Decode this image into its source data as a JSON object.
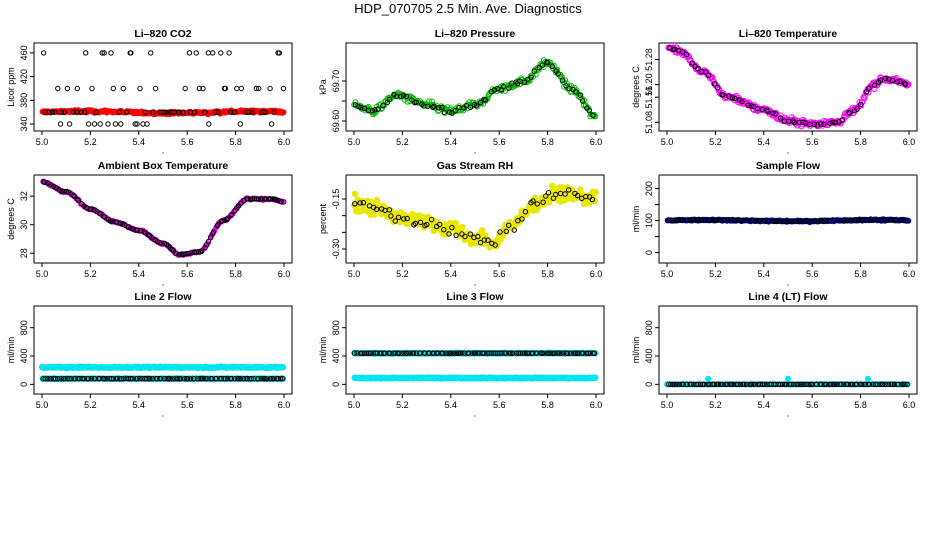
{
  "page": {
    "title": "HDP_070705  2.5 Min. Ave. Diagnostics"
  },
  "chart_data": [
    {
      "type": "scatter",
      "title": "Li–820 CO2",
      "xlabel": "",
      "ylabel": "Licor ppm",
      "xlim": [
        5.0,
        6.0
      ],
      "ylim": [
        335,
        470
      ],
      "xticks": [
        5.0,
        5.2,
        5.4,
        5.6,
        5.8,
        6.0
      ],
      "xtick_labels": [
        "5.0",
        "5.2",
        "5.4",
        "5.6",
        "5.8",
        "6.0"
      ],
      "yticks": [
        340,
        380,
        420,
        460
      ],
      "ytick_labels": [
        "340",
        "380",
        "420",
        "460"
      ],
      "series": [
        {
          "name": "raw",
          "color": "#ff0000",
          "mode": "band",
          "baseline": 360,
          "spread": 3,
          "noise": 1.5,
          "amp": 1.5,
          "n": 240,
          "size": 2.6,
          "marker": "filled"
        },
        {
          "name": "average",
          "color": "#000000",
          "mode": "discrete",
          "levels": [
            340,
            360,
            360,
            360,
            400,
            460
          ],
          "n": 90,
          "size": 2.2,
          "marker": "open"
        }
      ]
    },
    {
      "type": "scatter",
      "title": "Li–820 Pressure",
      "xlabel": "",
      "ylabel": "kPa",
      "xlim": [
        5.0,
        6.0
      ],
      "ylim": [
        69.585,
        69.785
      ],
      "xticks": [
        5.0,
        5.2,
        5.4,
        5.6,
        5.8,
        6.0
      ],
      "xtick_labels": [
        "5.0",
        "5.2",
        "5.4",
        "5.6",
        "5.8",
        "6.0"
      ],
      "yticks": [
        69.6,
        69.65,
        69.7
      ],
      "ytick_labels": [
        "69.60",
        "",
        "69.70"
      ],
      "series": [
        {
          "name": "raw",
          "color": "#00bb00",
          "mode": "curve",
          "curve": [
            [
              5.0,
              69.64
            ],
            [
              5.08,
              69.625
            ],
            [
              5.18,
              69.665
            ],
            [
              5.3,
              69.64
            ],
            [
              5.4,
              69.625
            ],
            [
              5.5,
              69.64
            ],
            [
              5.6,
              69.68
            ],
            [
              5.7,
              69.7
            ],
            [
              5.8,
              69.745
            ],
            [
              5.9,
              69.68
            ],
            [
              6.0,
              69.61
            ]
          ],
          "spread": 0.012,
          "noise": 0.006,
          "n": 260,
          "size": 2.4,
          "marker": "open"
        },
        {
          "name": "average",
          "color": "#000000",
          "mode": "curve",
          "curve": [
            [
              5.0,
              69.64
            ],
            [
              5.08,
              69.625
            ],
            [
              5.18,
              69.665
            ],
            [
              5.3,
              69.64
            ],
            [
              5.4,
              69.625
            ],
            [
              5.5,
              69.64
            ],
            [
              5.6,
              69.68
            ],
            [
              5.7,
              69.7
            ],
            [
              5.8,
              69.745
            ],
            [
              5.9,
              69.68
            ],
            [
              6.0,
              69.61
            ]
          ],
          "spread": 0.006,
          "noise": 0.004,
          "n": 70,
          "size": 2.2,
          "marker": "open"
        }
      ]
    },
    {
      "type": "scatter",
      "title": "Li–820 Temperature",
      "xlabel": "",
      "ylabel": "degrees C",
      "xlim": [
        5.0,
        6.0
      ],
      "ylim": [
        51.065,
        51.32
      ],
      "xticks": [
        5.0,
        5.2,
        5.4,
        5.6,
        5.8,
        6.0
      ],
      "xtick_labels": [
        "5.0",
        "5.2",
        "5.4",
        "5.6",
        "5.8",
        "6.0"
      ],
      "yticks": [
        51.08,
        51.16,
        51.2,
        51.28
      ],
      "ytick_labels": [
        "51.08",
        "51.16",
        "51.20",
        "51.28"
      ],
      "series": [
        {
          "name": "raw",
          "color": "#ff00ff",
          "mode": "curve",
          "curve": [
            [
              5.0,
              51.32
            ],
            [
              5.05,
              51.31
            ],
            [
              5.15,
              51.24
            ],
            [
              5.25,
              51.16
            ],
            [
              5.4,
              51.12
            ],
            [
              5.5,
              51.085
            ],
            [
              5.6,
              51.075
            ],
            [
              5.7,
              51.08
            ],
            [
              5.78,
              51.12
            ],
            [
              5.85,
              51.2
            ],
            [
              5.9,
              51.22
            ],
            [
              5.95,
              51.21
            ],
            [
              6.0,
              51.2
            ]
          ],
          "spread": 0.012,
          "noise": 0.008,
          "n": 300,
          "size": 2.6,
          "marker": "open"
        },
        {
          "name": "average",
          "color": "#000000",
          "mode": "curve",
          "curve": [
            [
              5.0,
              51.32
            ],
            [
              5.05,
              51.31
            ],
            [
              5.15,
              51.24
            ],
            [
              5.25,
              51.16
            ],
            [
              5.4,
              51.12
            ],
            [
              5.5,
              51.085
            ],
            [
              5.6,
              51.075
            ],
            [
              5.7,
              51.08
            ],
            [
              5.78,
              51.12
            ],
            [
              5.85,
              51.2
            ],
            [
              5.9,
              51.22
            ],
            [
              5.95,
              51.21
            ],
            [
              6.0,
              51.2
            ]
          ],
          "spread": 0.004,
          "noise": 0.003,
          "n": 65,
          "size": 2.2,
          "marker": "open"
        }
      ]
    },
    {
      "type": "scatter",
      "title": "Ambient Box Temperature",
      "xlabel": "",
      "ylabel": "degrees C",
      "xlim": [
        5.0,
        6.0
      ],
      "ylim": [
        27.6,
        33.2
      ],
      "xticks": [
        5.0,
        5.2,
        5.4,
        5.6,
        5.8,
        6.0
      ],
      "xtick_labels": [
        "5.0",
        "5.2",
        "5.4",
        "5.6",
        "5.8",
        "6.0"
      ],
      "yticks": [
        28,
        30,
        32
      ],
      "ytick_labels": [
        "28",
        "30",
        "32"
      ],
      "series": [
        {
          "name": "raw",
          "color": "#ff00ff",
          "mode": "curve",
          "curve": [
            [
              5.0,
              33.0
            ],
            [
              5.1,
              32.3
            ],
            [
              5.2,
              31.1
            ],
            [
              5.3,
              30.2
            ],
            [
              5.4,
              29.6
            ],
            [
              5.5,
              28.7
            ],
            [
              5.57,
              27.9
            ],
            [
              5.65,
              28.1
            ],
            [
              5.75,
              30.3
            ],
            [
              5.85,
              31.8
            ],
            [
              5.95,
              31.8
            ],
            [
              6.0,
              31.6
            ]
          ],
          "spread": 0.08,
          "noise": 0.04,
          "n": 120,
          "size": 2.6,
          "marker": "filled"
        },
        {
          "name": "average",
          "color": "#000000",
          "mode": "curve",
          "curve": [
            [
              5.0,
              33.0
            ],
            [
              5.1,
              32.3
            ],
            [
              5.2,
              31.1
            ],
            [
              5.3,
              30.2
            ],
            [
              5.4,
              29.6
            ],
            [
              5.5,
              28.7
            ],
            [
              5.57,
              27.9
            ],
            [
              5.65,
              28.1
            ],
            [
              5.75,
              30.3
            ],
            [
              5.85,
              31.8
            ],
            [
              5.95,
              31.8
            ],
            [
              6.0,
              31.6
            ]
          ],
          "spread": 0.02,
          "noise": 0.02,
          "n": 120,
          "size": 2.2,
          "marker": "open"
        }
      ]
    },
    {
      "type": "scatter",
      "title": "Gas Stream RH",
      "xlabel": "",
      "ylabel": "percent",
      "xlim": [
        5.0,
        6.0
      ],
      "ylim": [
        -0.33,
        -0.09
      ],
      "xticks": [
        5.0,
        5.2,
        5.4,
        5.6,
        5.8,
        6.0
      ],
      "xtick_labels": [
        "5.0",
        "5.2",
        "5.4",
        "5.6",
        "5.8",
        "6.0"
      ],
      "yticks": [
        -0.3,
        -0.25,
        -0.2,
        -0.15
      ],
      "ytick_labels": [
        "-0.30",
        "",
        "",
        "-0.15"
      ],
      "series": [
        {
          "name": "raw",
          "color": "#e8e800",
          "mode": "curve",
          "curve": [
            [
              5.0,
              -0.16
            ],
            [
              5.1,
              -0.18
            ],
            [
              5.2,
              -0.21
            ],
            [
              5.3,
              -0.22
            ],
            [
              5.4,
              -0.24
            ],
            [
              5.5,
              -0.27
            ],
            [
              5.58,
              -0.28
            ],
            [
              5.65,
              -0.23
            ],
            [
              5.75,
              -0.16
            ],
            [
              5.85,
              -0.13
            ],
            [
              6.0,
              -0.15
            ]
          ],
          "spread": 0.03,
          "noise": 0.015,
          "n": 300,
          "size": 2.8,
          "marker": "filled"
        },
        {
          "name": "average",
          "color": "#000000",
          "mode": "curve",
          "curve": [
            [
              5.0,
              -0.16
            ],
            [
              5.1,
              -0.18
            ],
            [
              5.2,
              -0.21
            ],
            [
              5.3,
              -0.22
            ],
            [
              5.4,
              -0.24
            ],
            [
              5.5,
              -0.27
            ],
            [
              5.58,
              -0.28
            ],
            [
              5.65,
              -0.23
            ],
            [
              5.75,
              -0.16
            ],
            [
              5.85,
              -0.13
            ],
            [
              6.0,
              -0.15
            ]
          ],
          "spread": 0.02,
          "noise": 0.012,
          "n": 60,
          "size": 2.2,
          "marker": "open"
        }
      ]
    },
    {
      "type": "scatter",
      "title": "Sample Flow",
      "xlabel": "",
      "ylabel": "ml/min",
      "xlim": [
        5.0,
        6.0
      ],
      "ylim": [
        -20,
        230
      ],
      "xticks": [
        5.0,
        5.2,
        5.4,
        5.6,
        5.8,
        6.0
      ],
      "xtick_labels": [
        "5.0",
        "5.2",
        "5.4",
        "5.6",
        "5.8",
        "6.0"
      ],
      "yticks": [
        0,
        50,
        100,
        150,
        200
      ],
      "ytick_labels": [
        "0",
        "",
        "100",
        "",
        "200"
      ],
      "series": [
        {
          "name": "raw",
          "color": "#0000cc",
          "mode": "band",
          "baseline": 100,
          "spread": 3,
          "noise": 1,
          "amp": 2,
          "n": 220,
          "size": 2.6,
          "marker": "filled"
        },
        {
          "name": "average",
          "color": "#000000",
          "mode": "band",
          "baseline": 100,
          "spread": 1.5,
          "noise": 0.5,
          "amp": 2,
          "n": 110,
          "size": 2.2,
          "marker": "open"
        }
      ]
    },
    {
      "type": "scatter",
      "title": "Line 2 Flow",
      "xlabel": "",
      "ylabel": "ml/min",
      "xlim": [
        5.0,
        6.0
      ],
      "ylim": [
        -80,
        1050
      ],
      "xticks": [
        5.0,
        5.2,
        5.4,
        5.6,
        5.8,
        6.0
      ],
      "xtick_labels": [
        "5.0",
        "5.2",
        "5.4",
        "5.6",
        "5.8",
        "6.0"
      ],
      "yticks": [
        0,
        400,
        800
      ],
      "ytick_labels": [
        "0",
        "400",
        "800"
      ],
      "series": [
        {
          "name": "raw high",
          "color": "#00e5ee",
          "mode": "band",
          "baseline": 240,
          "spread": 10,
          "noise": 5,
          "amp": 0,
          "n": 220,
          "size": 2.8,
          "marker": "filled"
        },
        {
          "name": "raw low",
          "color": "#00e5ee",
          "mode": "band",
          "baseline": 80,
          "spread": 8,
          "noise": 4,
          "amp": 0,
          "n": 180,
          "size": 2.8,
          "marker": "filled"
        },
        {
          "name": "average",
          "color": "#000000",
          "mode": "band",
          "baseline": 80,
          "spread": 3,
          "noise": 1,
          "amp": 0,
          "n": 110,
          "size": 2.2,
          "marker": "open"
        }
      ]
    },
    {
      "type": "scatter",
      "title": "Line 3 Flow",
      "xlabel": "",
      "ylabel": "ml/min",
      "xlim": [
        5.0,
        6.0
      ],
      "ylim": [
        -80,
        1050
      ],
      "xticks": [
        5.0,
        5.2,
        5.4,
        5.6,
        5.8,
        6.0
      ],
      "xtick_labels": [
        "5.0",
        "5.2",
        "5.4",
        "5.6",
        "5.8",
        "6.0"
      ],
      "yticks": [
        0,
        400,
        800
      ],
      "ytick_labels": [
        "0",
        "400",
        "800"
      ],
      "series": [
        {
          "name": "raw high",
          "color": "#00e5ee",
          "mode": "band",
          "baseline": 440,
          "spread": 8,
          "noise": 4,
          "amp": 0,
          "n": 200,
          "size": 2.8,
          "marker": "filled"
        },
        {
          "name": "raw low",
          "color": "#00e5ee",
          "mode": "band",
          "baseline": 90,
          "spread": 8,
          "noise": 4,
          "amp": 0,
          "n": 220,
          "size": 2.8,
          "marker": "filled"
        },
        {
          "name": "average",
          "color": "#000000",
          "mode": "band",
          "baseline": 440,
          "spread": 3,
          "noise": 1,
          "amp": 0,
          "n": 110,
          "size": 2.2,
          "marker": "open"
        }
      ]
    },
    {
      "type": "scatter",
      "title": "Line 4 (LT) Flow",
      "xlabel": "",
      "ylabel": "ml/min",
      "xlim": [
        5.0,
        6.0
      ],
      "ylim": [
        -80,
        1050
      ],
      "xticks": [
        5.0,
        5.2,
        5.4,
        5.6,
        5.8,
        6.0
      ],
      "xtick_labels": [
        "5.0",
        "5.2",
        "5.4",
        "5.6",
        "5.8",
        "6.0"
      ],
      "yticks": [
        0,
        400,
        800
      ],
      "ytick_labels": [
        "0",
        "400",
        "800"
      ],
      "series": [
        {
          "name": "raw",
          "color": "#00e5ee",
          "mode": "band",
          "baseline": 0,
          "spread": 3,
          "noise": 1,
          "amp": 0,
          "n": 150,
          "size": 2.6,
          "marker": "filled",
          "extras": [
            [
              5.17,
              80
            ],
            [
              5.5,
              80
            ],
            [
              5.83,
              80
            ],
            [
              5.0,
              0
            ]
          ]
        },
        {
          "name": "average",
          "color": "#000000",
          "mode": "band",
          "baseline": 0,
          "spread": 1,
          "noise": 0.5,
          "amp": 0,
          "n": 110,
          "size": 2.2,
          "marker": "open"
        }
      ]
    }
  ]
}
